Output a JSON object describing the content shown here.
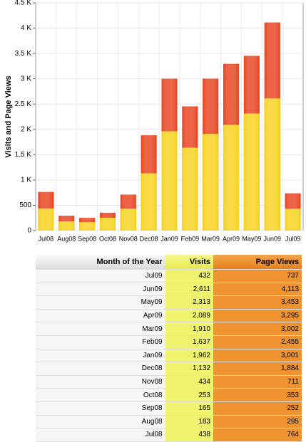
{
  "chart_data": {
    "type": "bar",
    "ylabel": "Visits and Page Views",
    "categories": [
      "Jul08",
      "Aug08",
      "Sep08",
      "Oct08",
      "Nov08",
      "Dec08",
      "Jan09",
      "Feb09",
      "Mar09",
      "Apr09",
      "May09",
      "Jun09",
      "Jul09"
    ],
    "series": [
      {
        "name": "Page Views",
        "color": "#e8401c",
        "values": [
          764,
          295,
          252,
          353,
          711,
          1884,
          3001,
          2455,
          3002,
          3295,
          3453,
          4113,
          737
        ]
      },
      {
        "name": "Visits",
        "color": "#f6d21a",
        "values": [
          438,
          183,
          165,
          253,
          434,
          1132,
          1962,
          1637,
          1910,
          2089,
          2313,
          2611,
          432
        ]
      }
    ],
    "ylim": [
      0,
      4500
    ],
    "yticks": [
      0,
      500,
      {
        "value": 1000,
        "label": "1 K"
      },
      {
        "value": 1500,
        "label": "1.5 K"
      },
      {
        "value": 2000,
        "label": "2 K"
      },
      {
        "value": 2500,
        "label": "2.5 K"
      },
      {
        "value": 3000,
        "label": "3 K"
      },
      {
        "value": 3500,
        "label": "3.5 K"
      },
      {
        "value": 4000,
        "label": "4 K"
      },
      {
        "value": 4500,
        "label": "4.5 K"
      }
    ],
    "grid": true
  },
  "table": {
    "header": [
      "Month of the Year",
      "Visits",
      "Page Views"
    ],
    "rows": [
      [
        "Jul09",
        "432",
        "737"
      ],
      [
        "Jun09",
        "2,611",
        "4,113"
      ],
      [
        "May09",
        "2,313",
        "3,453"
      ],
      [
        "Apr09",
        "2,089",
        "3,295"
      ],
      [
        "Mar09",
        "1,910",
        "3,002"
      ],
      [
        "Feb09",
        "1,637",
        "2,455"
      ],
      [
        "Jan09",
        "1,962",
        "3,001"
      ],
      [
        "Dec08",
        "1,132",
        "1,884"
      ],
      [
        "Nov08",
        "434",
        "711"
      ],
      [
        "Oct08",
        "253",
        "353"
      ],
      [
        "Sep08",
        "165",
        "252"
      ],
      [
        "Aug08",
        "183",
        "295"
      ],
      [
        "Jul08",
        "438",
        "764"
      ]
    ]
  }
}
